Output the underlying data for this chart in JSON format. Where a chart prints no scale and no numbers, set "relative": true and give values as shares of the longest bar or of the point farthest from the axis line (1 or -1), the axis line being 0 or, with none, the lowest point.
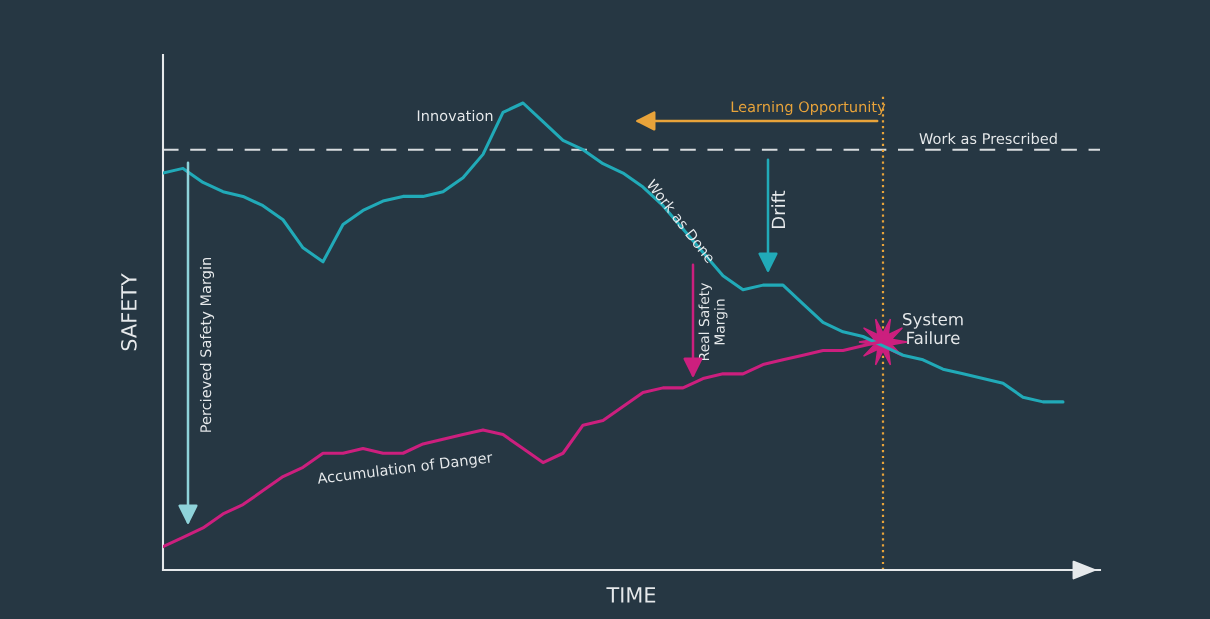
{
  "chart_data": {
    "type": "line",
    "relative": true,
    "xlabel": "TIME",
    "ylabel": "SAFETY",
    "marker": "none",
    "line_style": "solid",
    "categories": [
      null,
      null,
      null,
      null,
      null,
      null,
      null,
      null,
      null,
      null,
      null,
      null,
      null,
      null,
      null,
      null,
      null,
      null,
      null,
      null,
      null,
      null,
      null,
      null,
      null,
      null,
      null,
      null,
      null,
      null,
      null,
      null,
      null,
      null,
      null,
      null,
      null,
      null,
      null,
      null,
      null,
      null,
      null,
      null,
      null,
      null
    ],
    "series": [
      {
        "color": "#21aab8",
        "values": [
          0.85,
          0.86,
          0.83,
          0.81,
          0.8,
          0.78,
          0.75,
          0.69,
          0.66,
          0.74,
          0.77,
          0.79,
          0.8,
          0.8,
          0.81,
          0.84,
          0.89,
          0.98,
          1.0,
          0.96,
          0.92,
          0.9,
          0.87,
          0.85,
          0.82,
          0.78,
          0.73,
          0.68,
          0.63,
          0.6,
          0.61,
          0.61,
          0.57,
          0.53,
          0.51,
          0.5,
          0.48,
          0.46,
          0.45,
          0.43,
          0.42,
          0.41,
          0.4,
          0.37,
          0.36,
          0.36
        ]
      },
      {
        "color": "#cc1f7e",
        "values": [
          0.05,
          0.07,
          0.09,
          0.12,
          0.14,
          0.17,
          0.2,
          0.22,
          0.25,
          0.25,
          0.26,
          0.25,
          0.25,
          0.27,
          0.28,
          0.29,
          0.3,
          0.29,
          0.26,
          0.23,
          0.25,
          0.31,
          0.32,
          0.35,
          0.38,
          0.39,
          0.39,
          0.41,
          0.42,
          0.42,
          0.44,
          0.45,
          0.46,
          0.47,
          0.47,
          0.48,
          0.49,
          null,
          null,
          null,
          null,
          null,
          null,
          null,
          null,
          null
        ]
      }
    ],
    "ref_lines": [
      {
        "axis": "y",
        "value": 0.9,
        "label": "Work as Prescribed",
        "color": "#d9dde0",
        "line_style": "dashed"
      }
    ],
    "annotations": [
      "Innovation",
      "Work as Done",
      "Drift",
      "Real Safety\nMargin",
      "Percieved Safety Margin",
      "Accumulation of Danger",
      "Learning Opportunity",
      "System\nFailure"
    ]
  }
}
